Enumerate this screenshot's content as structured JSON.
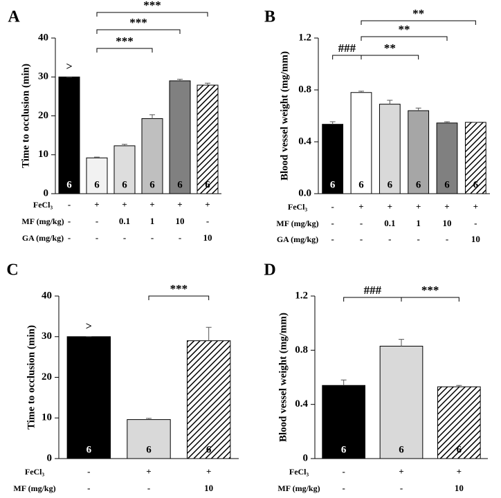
{
  "chart_data": [
    {
      "type": "bar",
      "panel": "A",
      "y_label": "Time to occlusion (min)",
      "ylim": [
        0,
        40
      ],
      "yticks": [
        0,
        10,
        20,
        30,
        40
      ],
      "series": [
        {
          "values": [
            30,
            9.2,
            12.3,
            19.3,
            29,
            27.9
          ],
          "errors": [
            0,
            0.2,
            0.4,
            1.0,
            0.4,
            0.5
          ],
          "colors": [
            "#000000",
            "#f2f2f2",
            "#dddddd",
            "#bfbfbf",
            "#808080",
            "#ffffff"
          ],
          "hatched": [
            false,
            false,
            false,
            false,
            false,
            true
          ],
          "n_labels": [
            "6",
            "6",
            "6",
            "6",
            "6",
            "6"
          ]
        }
      ],
      "annotations": [
        {
          "text": ">",
          "bar": 0
        }
      ],
      "brackets": [
        {
          "from": 1,
          "to": 5,
          "label": "***"
        },
        {
          "from": 1,
          "to": 4,
          "label": "***"
        },
        {
          "from": 1,
          "to": 3,
          "label": "***"
        }
      ],
      "rows": [
        {
          "label": "FeCl₃",
          "values": [
            "-",
            "+",
            "+",
            "+",
            "+",
            "+"
          ]
        },
        {
          "label": "MF (mg/kg)",
          "values": [
            "-",
            "-",
            "0.1",
            "1",
            "10",
            "-"
          ]
        },
        {
          "label": "GA (mg/kg)",
          "values": [
            "-",
            "-",
            "-",
            "-",
            "-",
            "10"
          ]
        }
      ]
    },
    {
      "type": "bar",
      "panel": "B",
      "y_label": "Blood vessel weight (mg/mm)",
      "ylim": [
        0,
        1.2
      ],
      "yticks": [
        {
          "value": 0,
          "label": "0.0"
        },
        {
          "value": 0.4,
          "label": "0.4"
        },
        {
          "value": 0.8,
          "label": "0.8"
        },
        {
          "value": 1.2,
          "label": "1.2"
        }
      ],
      "series": [
        {
          "values": [
            0.535,
            0.78,
            0.69,
            0.64,
            0.545,
            0.55
          ],
          "errors": [
            0.02,
            0.01,
            0.03,
            0.02,
            0.01,
            0
          ],
          "colors": [
            "#000000",
            "#ffffff",
            "#d9d9d9",
            "#a6a6a6",
            "#808080",
            "#ffffff"
          ],
          "hatched": [
            false,
            false,
            false,
            false,
            false,
            true
          ],
          "n_labels": [
            "6",
            "6",
            "6",
            "6",
            "6",
            "6"
          ]
        }
      ],
      "brackets": [
        {
          "from": 0,
          "to": 1,
          "label": "###"
        },
        {
          "from": 1,
          "to": 3,
          "label": "**"
        },
        {
          "from": 1,
          "to": 4,
          "label": "**"
        },
        {
          "from": 1,
          "to": 5,
          "label": "**"
        }
      ],
      "rows": [
        {
          "label": "FeCl₃",
          "values": [
            "-",
            "+",
            "+",
            "+",
            "+",
            "+"
          ]
        },
        {
          "label": "MF (mg/kg)",
          "values": [
            "-",
            "-",
            "0.1",
            "1",
            "10",
            "-"
          ]
        },
        {
          "label": "GA (mg/kg)",
          "values": [
            "-",
            "-",
            "-",
            "-",
            "-",
            "10"
          ]
        }
      ]
    },
    {
      "type": "bar",
      "panel": "C",
      "y_label": "Time to occlusion (min)",
      "ylim": [
        0,
        40
      ],
      "yticks": [
        0,
        10,
        20,
        30,
        40
      ],
      "series": [
        {
          "values": [
            30,
            9.6,
            29
          ],
          "errors": [
            0,
            0.3,
            3.3
          ],
          "colors": [
            "#000000",
            "#d9d9d9",
            "#ffffff"
          ],
          "hatched": [
            false,
            false,
            true
          ],
          "n_labels": [
            "6",
            "6",
            "6"
          ]
        }
      ],
      "annotations": [
        {
          "text": ">",
          "bar": 0
        }
      ],
      "brackets": [
        {
          "from": 1,
          "to": 2,
          "label": "***"
        }
      ],
      "rows": [
        {
          "label": "FeCl₃",
          "values": [
            "-",
            "+",
            "+"
          ]
        },
        {
          "label": "MF (mg/kg)",
          "values": [
            "-",
            "-",
            "10"
          ]
        }
      ]
    },
    {
      "type": "bar",
      "panel": "D",
      "y_label": "Blood vessel weight (mg/mm)",
      "ylim": [
        0,
        1.2
      ],
      "yticks": [
        {
          "value": 0,
          "label": "0"
        },
        {
          "value": 0.4,
          "label": "0.4"
        },
        {
          "value": 0.8,
          "label": "0.8"
        },
        {
          "value": 1.2,
          "label": "1.2"
        }
      ],
      "series": [
        {
          "values": [
            0.54,
            0.83,
            0.53
          ],
          "errors": [
            0.04,
            0.05,
            0.01
          ],
          "colors": [
            "#000000",
            "#d9d9d9",
            "#ffffff"
          ],
          "hatched": [
            false,
            false,
            true
          ],
          "n_labels": [
            "6",
            "6",
            "6"
          ]
        }
      ],
      "brackets": [
        {
          "from": 0,
          "to": 1,
          "label": "###"
        },
        {
          "from": 1,
          "to": 2,
          "label": "***"
        }
      ],
      "rows": [
        {
          "label": "FeCl₃",
          "values": [
            "-",
            "+",
            "+"
          ]
        },
        {
          "label": "MF (mg/kg)",
          "values": [
            "-",
            "-",
            "10"
          ]
        }
      ]
    }
  ]
}
